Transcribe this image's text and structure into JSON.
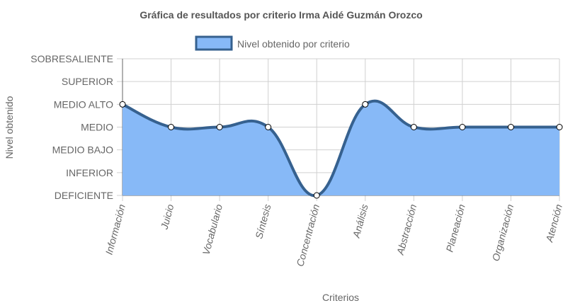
{
  "chart_data": {
    "type": "area",
    "title": "Gráfica de resultados por criterio Irma Aidé Guzmán Orozco",
    "xlabel": "Criterios",
    "ylabel": "Nivel obtenido",
    "levels": [
      "DEFICIENTE",
      "INFERIOR",
      "MEDIO BAJO",
      "MEDIO",
      "MEDIO ALTO",
      "SUPERIOR",
      "SOBRESALIENTE"
    ],
    "ylim": [
      0,
      6
    ],
    "categories": [
      "Información",
      "Juicio",
      "Vocabulario",
      "Síntesis",
      "Concentración",
      "Análisis",
      "Abstracción",
      "Planeación",
      "Organización",
      "Atención"
    ],
    "series": [
      {
        "name": "Nivel obtenido por criterio",
        "values": [
          4,
          3,
          3,
          3,
          0,
          4,
          3,
          3,
          3,
          3
        ]
      }
    ],
    "legend_position": "top",
    "grid": true,
    "colors": {
      "fill": "#87b9f7",
      "line": "#36618f",
      "point_fill": "#ffffff",
      "point_stroke": "#000000",
      "grid": "#d0d0d0",
      "axis": "#666666"
    }
  }
}
